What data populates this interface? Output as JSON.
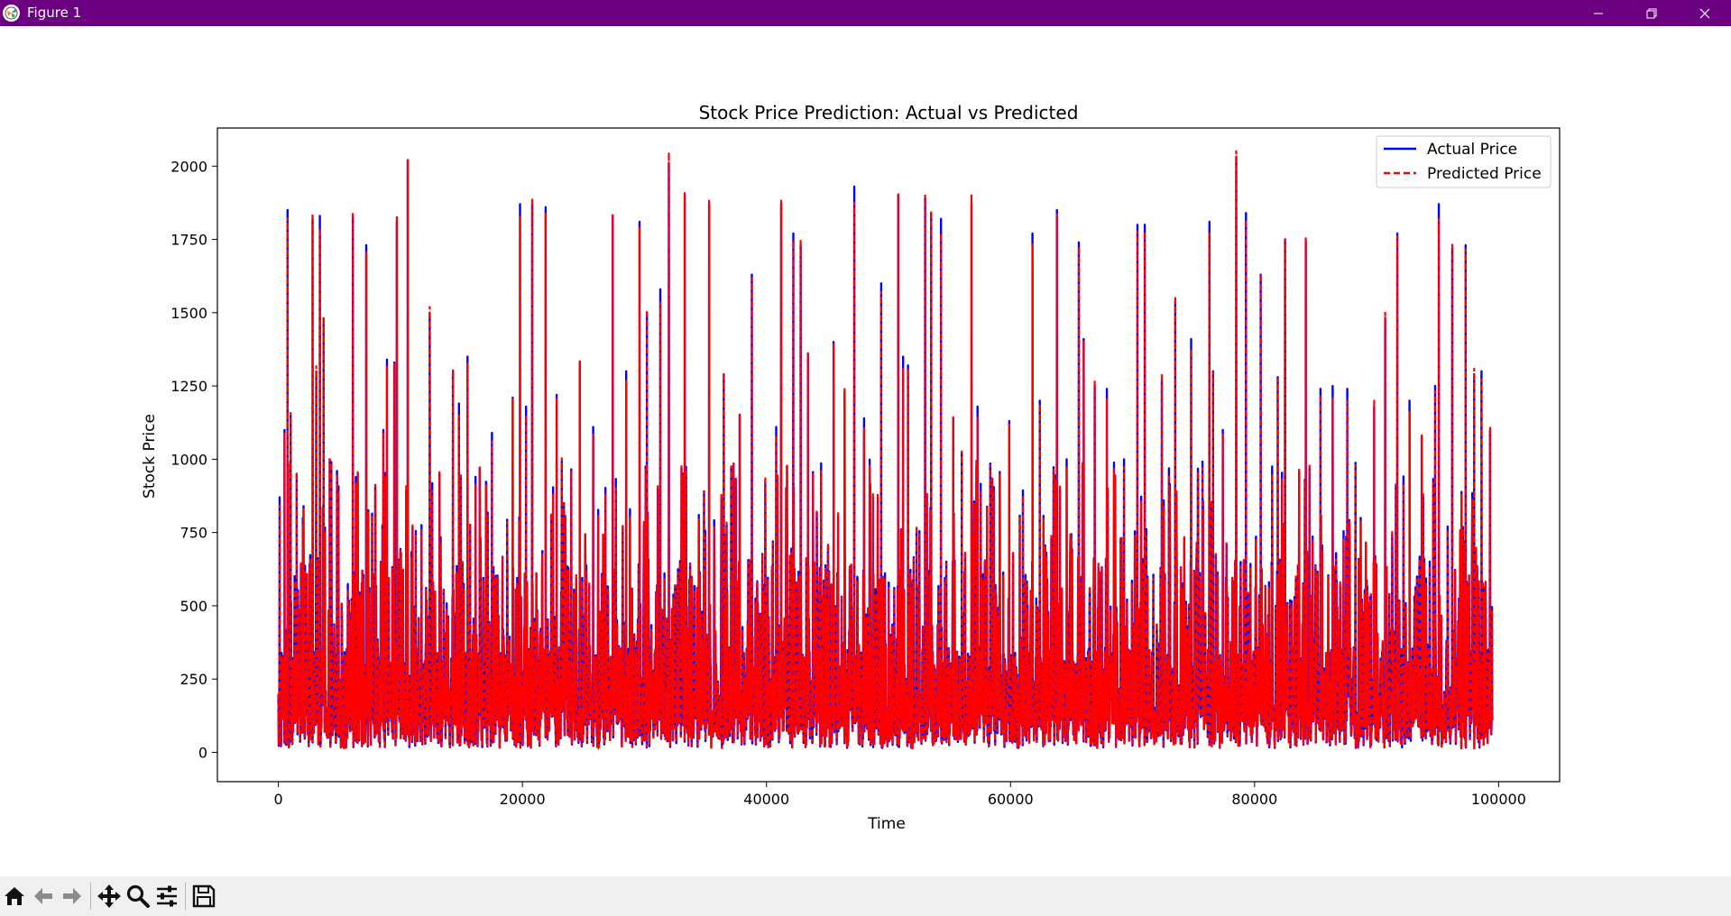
{
  "window": {
    "title": "Figure 1",
    "titlebar_color": "#6b0080",
    "controls": [
      "minimize-icon",
      "restore-icon",
      "close-icon"
    ]
  },
  "toolbar": {
    "background": "#f0f0f0",
    "buttons": [
      {
        "name": "home-button",
        "icon": "home-icon"
      },
      {
        "name": "back-button",
        "icon": "arrow-left-icon"
      },
      {
        "name": "forward-button",
        "icon": "arrow-right-icon"
      },
      {
        "name": "pan-button",
        "icon": "move-icon"
      },
      {
        "name": "zoom-button",
        "icon": "magnifier-icon"
      },
      {
        "name": "configure-subplots-button",
        "icon": "sliders-icon"
      },
      {
        "name": "save-button",
        "icon": "floppy-disk-icon"
      }
    ]
  },
  "chart_data": {
    "type": "line",
    "title": "Stock Price Prediction: Actual vs Predicted",
    "xlabel": "Time",
    "ylabel": "Stock Price",
    "xlim": [
      -5000,
      105000
    ],
    "ylim": [
      -100,
      2130
    ],
    "xticks": [
      0,
      20000,
      40000,
      60000,
      80000,
      100000
    ],
    "yticks": [
      0,
      250,
      500,
      750,
      1000,
      1250,
      1500,
      1750,
      2000
    ],
    "legend_position": "top-right",
    "grid": false,
    "x_range": [
      0,
      99500
    ],
    "series": [
      {
        "name": "Actual Price",
        "color": "#0000ff",
        "linestyle": "solid"
      },
      {
        "name": "Predicted Price",
        "color": "#ff0000",
        "linestyle": "dashed"
      }
    ],
    "peaks": [
      [
        100,
        870
      ],
      [
        500,
        1100
      ],
      [
        750,
        1850
      ],
      [
        1000,
        1150
      ],
      [
        1500,
        950
      ],
      [
        2000,
        800
      ],
      [
        2800,
        1820
      ],
      [
        3100,
        1300
      ],
      [
        3400,
        1830
      ],
      [
        3700,
        1480
      ],
      [
        4200,
        1000
      ],
      [
        4800,
        960
      ],
      [
        6100,
        1830
      ],
      [
        6500,
        950
      ],
      [
        7200,
        1730
      ],
      [
        8000,
        540
      ],
      [
        8600,
        1100
      ],
      [
        8900,
        1340
      ],
      [
        9500,
        1330
      ],
      [
        9700,
        1810
      ],
      [
        10600,
        2020
      ],
      [
        11000,
        770
      ],
      [
        12400,
        1500
      ],
      [
        13200,
        950
      ],
      [
        14300,
        1300
      ],
      [
        14800,
        1190
      ],
      [
        15500,
        1350
      ],
      [
        16500,
        970
      ],
      [
        17500,
        1090
      ],
      [
        19200,
        1210
      ],
      [
        19800,
        1870
      ],
      [
        20300,
        1180
      ],
      [
        20800,
        1870
      ],
      [
        21900,
        1860
      ],
      [
        22800,
        1220
      ],
      [
        23400,
        850
      ],
      [
        24700,
        1330
      ],
      [
        25800,
        1110
      ],
      [
        27400,
        1830
      ],
      [
        28500,
        1300
      ],
      [
        29600,
        1810
      ],
      [
        30200,
        1500
      ],
      [
        31300,
        1580
      ],
      [
        32000,
        2010
      ],
      [
        33300,
        1900
      ],
      [
        35300,
        1870
      ],
      [
        36500,
        1290
      ],
      [
        37800,
        1150
      ],
      [
        38800,
        1630
      ],
      [
        40800,
        1110
      ],
      [
        41200,
        1870
      ],
      [
        42200,
        1770
      ],
      [
        42800,
        1730
      ],
      [
        43400,
        1360
      ],
      [
        45500,
        1400
      ],
      [
        46400,
        1230
      ],
      [
        47200,
        1930
      ],
      [
        48000,
        1140
      ],
      [
        49400,
        1600
      ],
      [
        50800,
        1900
      ],
      [
        51200,
        1350
      ],
      [
        51600,
        1320
      ],
      [
        53000,
        1890
      ],
      [
        53500,
        1840
      ],
      [
        54300,
        1820
      ],
      [
        55300,
        1140
      ],
      [
        56000,
        1020
      ],
      [
        56800,
        1870
      ],
      [
        57300,
        1180
      ],
      [
        58500,
        930
      ],
      [
        59900,
        1130
      ],
      [
        61800,
        1770
      ],
      [
        62400,
        1200
      ],
      [
        63800,
        1850
      ],
      [
        64600,
        1000
      ],
      [
        65600,
        1740
      ],
      [
        66000,
        1410
      ],
      [
        66900,
        1250
      ],
      [
        67900,
        1240
      ],
      [
        69300,
        1000
      ],
      [
        70400,
        1800
      ],
      [
        71000,
        1800
      ],
      [
        72400,
        1270
      ],
      [
        73500,
        1540
      ],
      [
        74800,
        1410
      ],
      [
        76300,
        1810
      ],
      [
        76600,
        1300
      ],
      [
        77400,
        1100
      ],
      [
        78500,
        2030
      ],
      [
        79300,
        1840
      ],
      [
        80500,
        1630
      ],
      [
        81900,
        1280
      ],
      [
        82500,
        1750
      ],
      [
        84200,
        1740
      ],
      [
        85400,
        1240
      ],
      [
        86400,
        1250
      ],
      [
        87600,
        1240
      ],
      [
        88700,
        800
      ],
      [
        89800,
        1180
      ],
      [
        90700,
        1480
      ],
      [
        91700,
        1770
      ],
      [
        92700,
        1200
      ],
      [
        93700,
        1080
      ],
      [
        94800,
        1250
      ],
      [
        95100,
        1870
      ],
      [
        96200,
        1720
      ],
      [
        97300,
        1730
      ],
      [
        98000,
        1290
      ],
      [
        98600,
        1300
      ],
      [
        99300,
        1100
      ]
    ]
  }
}
